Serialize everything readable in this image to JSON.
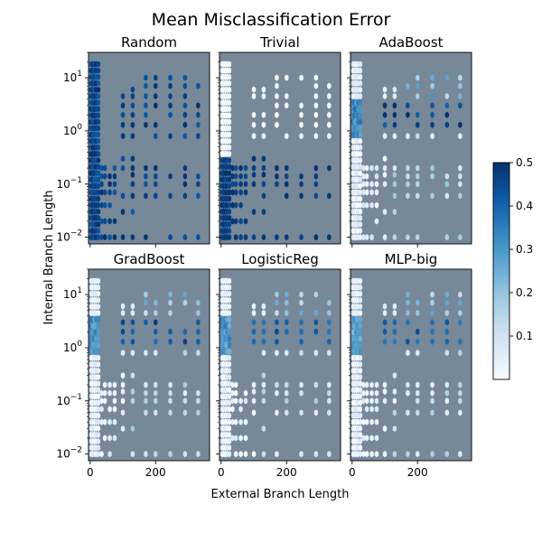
{
  "figure": {
    "title": "Mean Misclassification Error",
    "xlabel": "External Branch Length",
    "ylabel": "Internal Branch Length"
  },
  "chart_data": {
    "type": "heatmap",
    "subtype": "hexbin",
    "x_scale": "linear",
    "y_scale": "log",
    "xlim": [
      -5,
      365
    ],
    "ylim": [
      0.0075,
      30
    ],
    "x_ticks": [
      0,
      200
    ],
    "x_tick_labels": [
      "0",
      "200"
    ],
    "y_ticks": [
      0.01,
      0.1,
      1,
      10
    ],
    "y_tick_labels": [
      "10",
      "10",
      "10",
      "10"
    ],
    "y_tick_exponents": [
      "−2",
      "−1",
      "0",
      "1"
    ],
    "colorbar": {
      "colormap": "Blues",
      "range": [
        0.0,
        0.5
      ],
      "ticks": [
        0.1,
        0.2,
        0.3,
        0.4,
        0.5
      ],
      "tick_labels": [
        "0.1",
        "0.2",
        "0.3",
        "0.4",
        "0.5"
      ]
    },
    "background_color": "#778899",
    "x_columns": [
      3,
      8,
      13,
      18,
      25,
      35,
      45,
      60,
      75,
      100,
      130,
      170,
      200,
      245,
      290,
      330
    ],
    "panels": [
      {
        "title": "Random",
        "model": "random"
      },
      {
        "title": "Trivial",
        "model": "trivial"
      },
      {
        "title": "AdaBoost",
        "model": "adaboost"
      },
      {
        "title": "GradBoost",
        "model": "gradboost"
      },
      {
        "title": "LogisticReg",
        "model": "logreg"
      },
      {
        "title": "MLP-big",
        "model": "mlp"
      }
    ]
  }
}
